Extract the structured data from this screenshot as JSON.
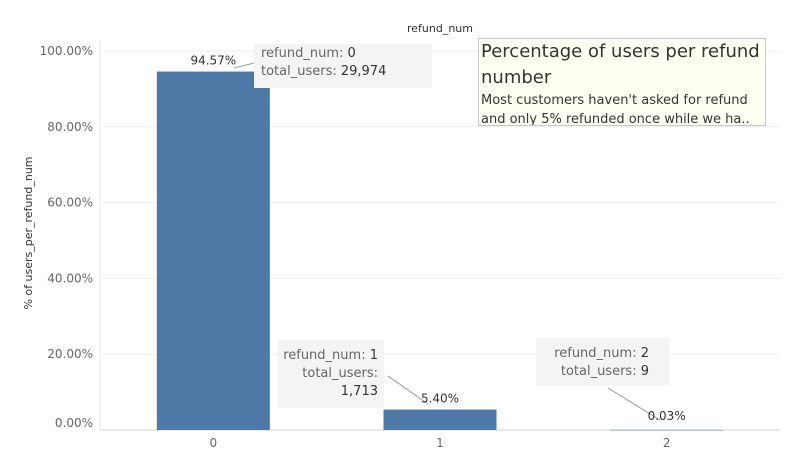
{
  "chart_data": {
    "type": "bar",
    "title": "refund_num",
    "xlabel": "",
    "ylabel": "% of users_per_refund_num",
    "categories": [
      "0",
      "1",
      "2"
    ],
    "values": [
      94.57,
      5.4,
      0.03
    ],
    "value_labels": [
      "94.57%",
      "5.40%",
      "0.03%"
    ],
    "ylim": [
      0,
      100
    ],
    "yticks": [
      "0.00%",
      "20.00%",
      "40.00%",
      "60.00%",
      "80.00%",
      "100.00%"
    ],
    "ytick_values": [
      0,
      20,
      40,
      60,
      80,
      100
    ],
    "grid": true,
    "bar_color": "#4e79a7"
  },
  "tooltips": [
    {
      "key1": "refund_num:",
      "val1": "0",
      "key2": "total_users:",
      "val2": "29,974"
    },
    {
      "key1": "refund_num:",
      "val1": "1",
      "key2": "total_users:",
      "val2": "1,713"
    },
    {
      "key1": "refund_num:",
      "val1": "2",
      "key2": "total_users:",
      "val2": "9"
    }
  ],
  "annotation": {
    "title": "Percentage of users per refund number",
    "body": "Most customers haven't asked for refund and only 5% refunded once while we ha.."
  }
}
